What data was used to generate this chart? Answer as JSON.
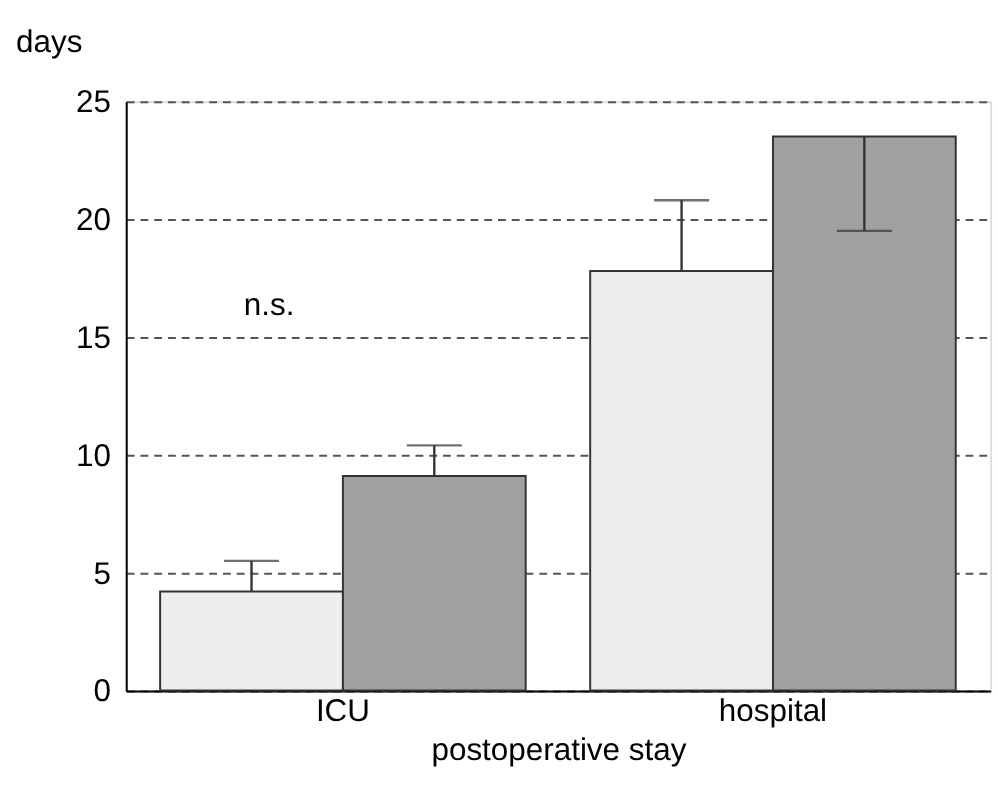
{
  "chart_data": {
    "type": "bar",
    "ylabel": "days",
    "xlabel": "postoperative stay",
    "categories": [
      "ICU",
      "hospital"
    ],
    "series": [
      {
        "color": "#eeeeee",
        "values": [
          4.2,
          17.8
        ],
        "errors": [
          [
            4.2,
            5.5
          ],
          [
            17.8,
            20.8
          ]
        ]
      },
      {
        "color": "#a0a0a0",
        "values": [
          9.1,
          23.5
        ],
        "errors": [
          [
            9.1,
            10.4
          ],
          [
            19.5,
            23.5
          ]
        ]
      }
    ],
    "ylim": [
      0,
      25
    ],
    "yticks": [
      0,
      5,
      10,
      15,
      20,
      25
    ],
    "grid": "y",
    "annotations": [
      "n.s."
    ]
  }
}
